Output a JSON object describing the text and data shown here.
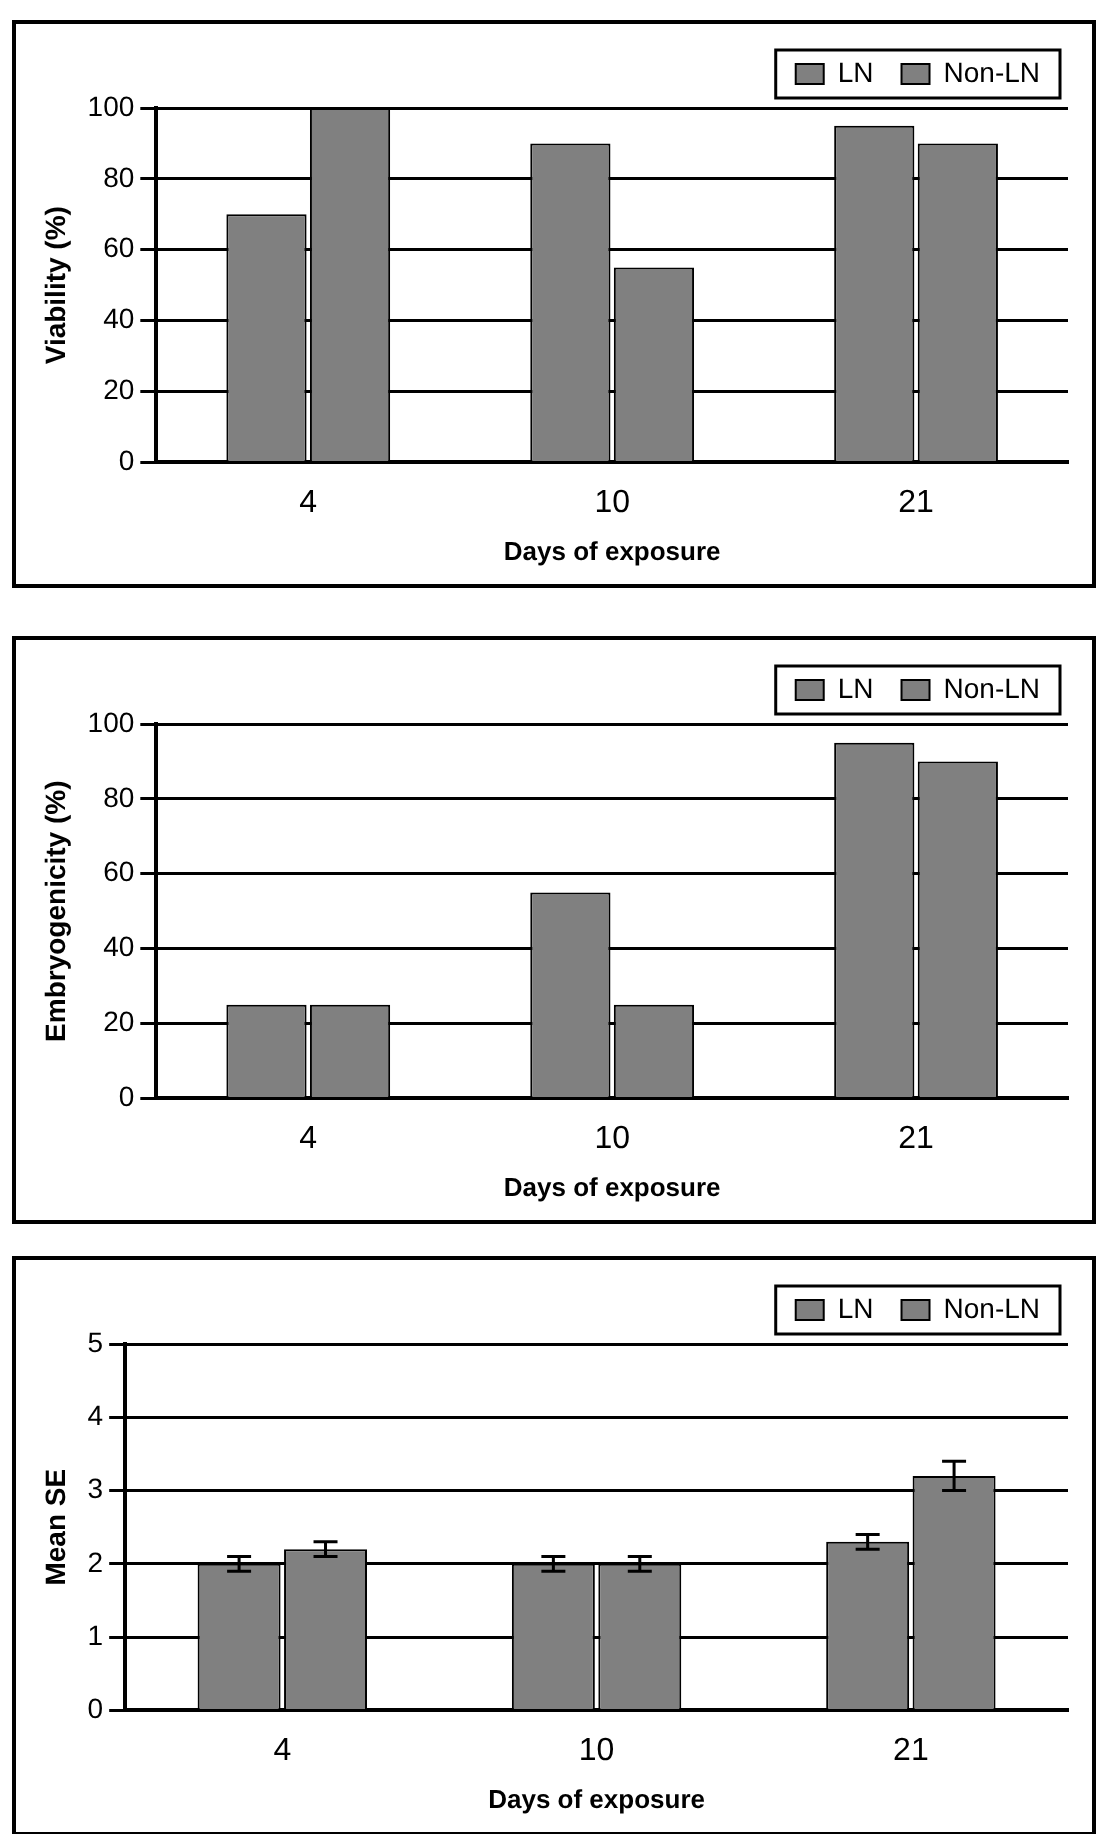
{
  "chart_data": [
    {
      "type": "bar",
      "xlabel": "Days of exposure",
      "ylabel": "Viability (%)",
      "categories": [
        "4",
        "10",
        "21"
      ],
      "series": [
        {
          "name": "LN",
          "color": "#808080",
          "values": [
            70,
            90,
            95
          ]
        },
        {
          "name": "Non-LN",
          "color": "#808080",
          "values": [
            100,
            55,
            90
          ]
        }
      ],
      "ylim": [
        0,
        100
      ],
      "yticks": [
        0,
        20,
        40,
        60,
        80,
        100
      ],
      "grid": "y",
      "legend": "top right"
    },
    {
      "type": "bar",
      "xlabel": "Days of exposure",
      "ylabel": "Embryogenicity (%)",
      "categories": [
        "4",
        "10",
        "21"
      ],
      "series": [
        {
          "name": "LN",
          "color": "#808080",
          "values": [
            25,
            55,
            95
          ]
        },
        {
          "name": "Non-LN",
          "color": "#808080",
          "values": [
            25,
            25,
            90
          ]
        }
      ],
      "ylim": [
        0,
        100
      ],
      "yticks": [
        0,
        20,
        40,
        60,
        80,
        100
      ],
      "grid": "y",
      "legend": "top right"
    },
    {
      "type": "bar",
      "xlabel": "Days of exposure",
      "ylabel": "Mean SE",
      "categories": [
        "4",
        "10",
        "21"
      ],
      "series": [
        {
          "name": "LN",
          "color": "#808080",
          "values": [
            2,
            2,
            2.3
          ],
          "errors": [
            0.1,
            0.1,
            0.1
          ]
        },
        {
          "name": "Non-LN",
          "color": "#808080",
          "values": [
            2.2,
            2,
            3.2
          ],
          "errors": [
            0.1,
            0.1,
            0.2
          ]
        }
      ],
      "ylim": [
        0,
        5
      ],
      "yticks": [
        0,
        1,
        2,
        3,
        4,
        5
      ],
      "grid": "y",
      "legend": "top right"
    }
  ]
}
